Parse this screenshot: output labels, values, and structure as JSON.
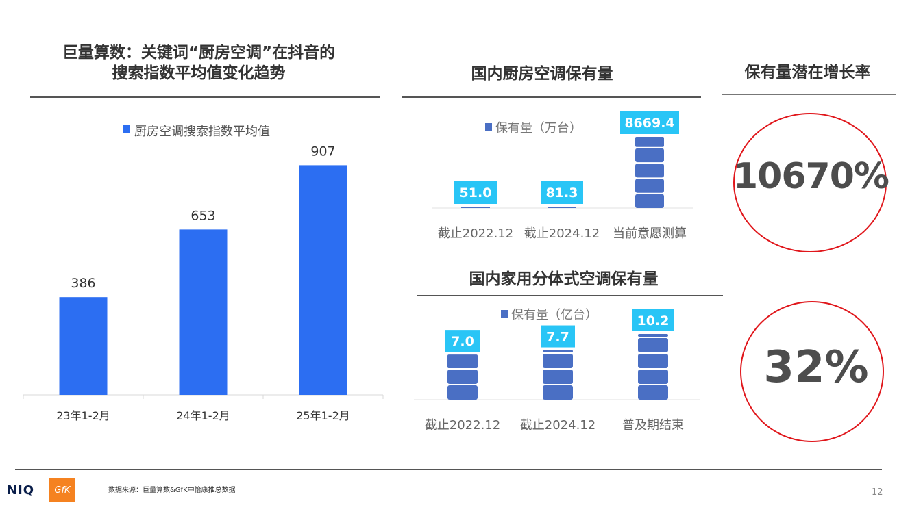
{
  "left": {
    "title_line1": "巨量算数：关键词“厨房空调”在抖音的",
    "title_line2": "搜索指数平均值变化趋势",
    "chart_data": {
      "type": "bar",
      "categories": [
        "23年1-2月",
        "24年1-2月",
        "25年1-2月"
      ],
      "series": [
        {
          "name": "厨房空调搜索指数平均值",
          "values": [
            386,
            653,
            907
          ]
        }
      ],
      "ylim": [
        0,
        1000
      ],
      "color": "#2c6ef2",
      "legend": "top"
    }
  },
  "mid_top": {
    "title": "国内厨房空调保有量",
    "chart_data": {
      "type": "bar",
      "categories": [
        "截止2022.12",
        "截止2024.12",
        "当前意愿测算"
      ],
      "series": [
        {
          "name": "保有量（万台）",
          "values": [
            51.0,
            81.3,
            8669.4
          ]
        }
      ],
      "labels": [
        "51.0",
        "81.3",
        "8669.4"
      ],
      "ylim": [
        0,
        8669.4
      ],
      "color": "#4a6fc4",
      "label_bg": "#29c5f6",
      "legend": "top"
    }
  },
  "mid_bottom": {
    "title": "国内家用分体式空调保有量",
    "chart_data": {
      "type": "bar",
      "categories": [
        "截止2022.12",
        "截止2024.12",
        "普及期结束"
      ],
      "series": [
        {
          "name": "保有量（亿台）",
          "values": [
            7.0,
            7.7,
            10.2
          ]
        }
      ],
      "labels": [
        "7.0",
        "7.7",
        "10.2"
      ],
      "ylim": [
        0,
        10.2
      ],
      "color": "#4a6fc4",
      "label_bg": "#29c5f6",
      "legend": "top"
    }
  },
  "right": {
    "title": "保有量潜在增长率",
    "rate1": "10670%",
    "rate2": "32%",
    "circle_color": "#e0161b"
  },
  "footer": {
    "logo1": "NIQ",
    "logo2": "GfK",
    "source": "数据来源：巨量算数&GfK中怡康推总数据",
    "page": "12"
  }
}
